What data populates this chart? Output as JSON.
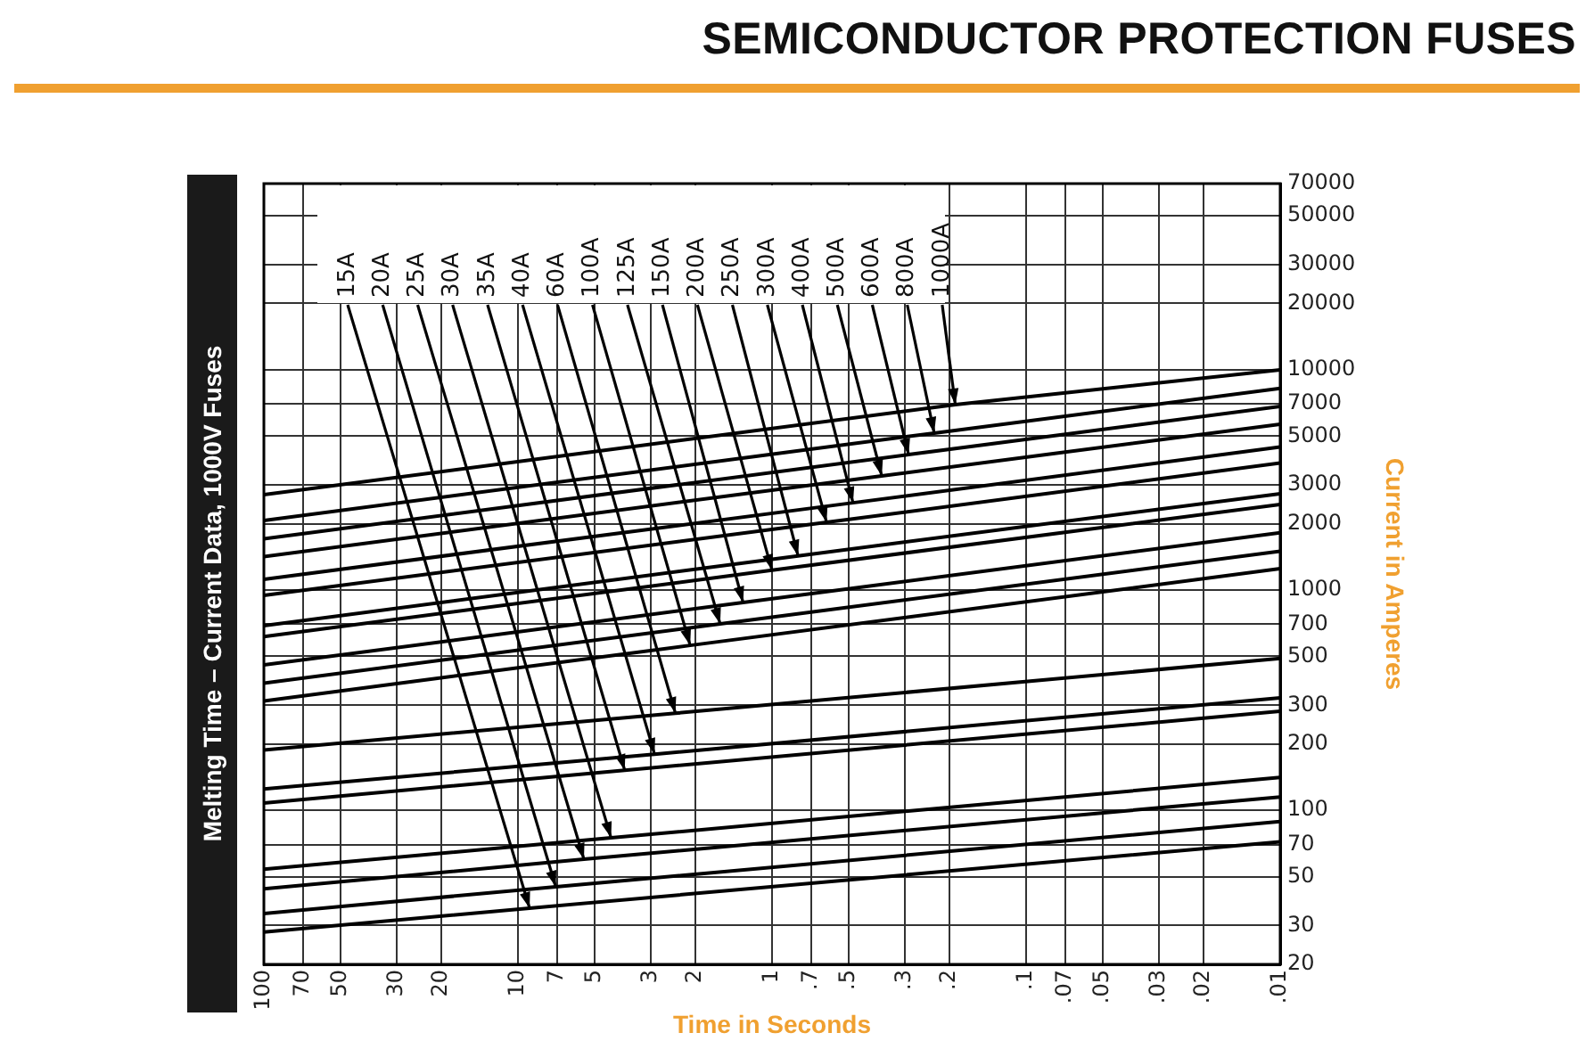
{
  "chart_data": {
    "type": "line",
    "title": "SEMICONDUCTOR PROTECTION FUSES",
    "subtitle": "Melting Time – Current Data, 1000V Fuses",
    "xlabel": "Time in Seconds",
    "ylabel": "Current in Amperes",
    "log": "xy",
    "grid": true,
    "legend": false,
    "marker": "none",
    "line_style": "solid",
    "xlim": [
      100,
      0.01
    ],
    "xticks": [
      100,
      70,
      50,
      30,
      20,
      10,
      7,
      5,
      3,
      2,
      1,
      {
        "value": 0.7,
        "label": ".7"
      },
      {
        "value": 0.5,
        "label": ".5"
      },
      {
        "value": 0.3,
        "label": ".3"
      },
      {
        "value": 0.2,
        "label": ".2"
      },
      {
        "value": 0.1,
        "label": ".1"
      },
      {
        "value": 0.07,
        "label": ".07"
      },
      {
        "value": 0.05,
        "label": ".05"
      },
      {
        "value": 0.03,
        "label": ".03"
      },
      {
        "value": 0.02,
        "label": ".02"
      },
      {
        "value": 0.01,
        "label": ".01"
      }
    ],
    "ylim": [
      20,
      70000
    ],
    "yticks": [
      20,
      30,
      50,
      70,
      100,
      200,
      300,
      500,
      700,
      1000,
      2000,
      3000,
      5000,
      7000,
      10000,
      20000,
      30000,
      50000,
      70000
    ],
    "series": [
      {
        "name": "15A",
        "color": "#000000",
        "x": [
          100,
          9.0,
          0.01
        ],
        "values": [
          28,
          36,
          72
        ]
      },
      {
        "name": "20A",
        "color": "#000000",
        "x": [
          100,
          7.1,
          0.01
        ],
        "values": [
          34,
          45,
          89
        ]
      },
      {
        "name": "25A",
        "color": "#000000",
        "x": [
          100,
          5.5,
          0.01
        ],
        "values": [
          44,
          60,
          115
        ]
      },
      {
        "name": "30A",
        "color": "#000000",
        "x": [
          100,
          4.3,
          0.01
        ],
        "values": [
          54,
          75,
          141
        ]
      },
      {
        "name": "35A",
        "color": "#000000",
        "x": [
          100,
          3.8,
          0.01
        ],
        "values": [
          108,
          152,
          282
        ]
      },
      {
        "name": "40A",
        "color": "#000000",
        "x": [
          100,
          2.9,
          0.01
        ],
        "values": [
          125,
          180,
          324
        ]
      },
      {
        "name": "60A",
        "color": "#000000",
        "x": [
          100,
          2.4,
          0.01
        ],
        "values": [
          188,
          276,
          489
        ]
      },
      {
        "name": "100A",
        "color": "#000000",
        "x": [
          100,
          2.1,
          0.01
        ],
        "values": [
          314,
          561,
          1250
        ]
      },
      {
        "name": "125A",
        "color": "#000000",
        "x": [
          100,
          1.6,
          0.01
        ],
        "values": [
          378,
          702,
          1500
        ]
      },
      {
        "name": "150A",
        "color": "#000000",
        "x": [
          100,
          1.3,
          0.01
        ],
        "values": [
          457,
          878,
          1820
        ]
      },
      {
        "name": "200A",
        "color": "#000000",
        "x": [
          100,
          1.0,
          0.01
        ],
        "values": [
          615,
          1230,
          2450
        ]
      },
      {
        "name": "250A",
        "color": "#000000",
        "x": [
          100,
          0.79,
          0.01
        ],
        "values": [
          689,
          1430,
          2740
        ]
      },
      {
        "name": "300A",
        "color": "#000000",
        "x": [
          100,
          0.61,
          0.01
        ],
        "values": [
          946,
          2030,
          3770
        ]
      },
      {
        "name": "400A",
        "color": "#000000",
        "x": [
          100,
          0.48,
          0.01
        ],
        "values": [
          1120,
          2490,
          4460
        ]
      },
      {
        "name": "500A",
        "color": "#000000",
        "x": [
          100,
          0.37,
          0.01
        ],
        "values": [
          1420,
          3300,
          5660
        ]
      },
      {
        "name": "600A",
        "color": "#000000",
        "x": [
          100,
          0.29,
          0.01
        ],
        "values": [
          1710,
          4120,
          6820
        ]
      },
      {
        "name": "800A",
        "color": "#000000",
        "x": [
          100,
          0.23,
          0.01
        ],
        "values": [
          2070,
          5160,
          8240
        ]
      },
      {
        "name": "1000A",
        "color": "#000000",
        "x": [
          100,
          0.19,
          0.01
        ],
        "values": [
          2710,
          6950,
          10000
        ]
      }
    ]
  }
}
